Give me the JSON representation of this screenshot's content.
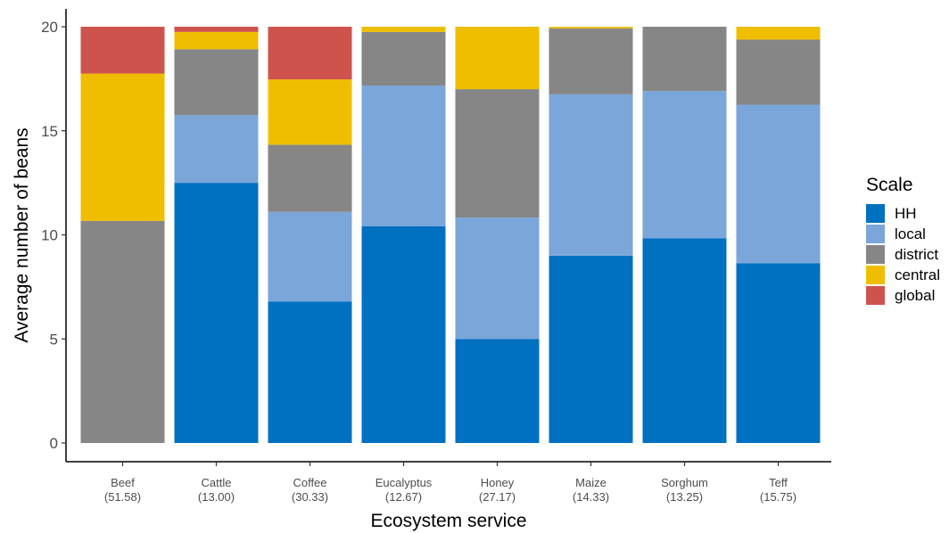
{
  "chart_data": {
    "type": "bar",
    "stacked": true,
    "xlabel": "Ecosystem service",
    "ylabel": "Average number of beans",
    "ylim": [
      0,
      20
    ],
    "yticks": [
      0,
      5,
      10,
      15,
      20
    ],
    "grid": false,
    "legend_position": "right",
    "categories": [
      "Beef",
      "Cattle",
      "Coffee",
      "Eucalyptus",
      "Honey",
      "Maize",
      "Sorghum",
      "Teff"
    ],
    "category_sublabels": [
      "(51.58)",
      "(13.00)",
      "(30.33)",
      "(12.67)",
      "(27.17)",
      "(14.33)",
      "(13.25)",
      "(15.75)"
    ],
    "legend": {
      "title": "Scale",
      "entries": [
        "HH",
        "local",
        "district",
        "central",
        "global"
      ]
    },
    "series": [
      {
        "name": "HH",
        "color": "#0070C0",
        "values": [
          0.0,
          12.5,
          6.8,
          10.42,
          5.0,
          9.0,
          9.83,
          8.63
        ]
      },
      {
        "name": "local",
        "color": "#7AA6DA",
        "values": [
          0.0,
          3.25,
          4.3,
          6.75,
          5.83,
          7.75,
          7.08,
          7.62
        ]
      },
      {
        "name": "district",
        "color": "#868686",
        "values": [
          10.67,
          3.17,
          3.23,
          2.58,
          6.17,
          3.17,
          3.09,
          3.13
        ]
      },
      {
        "name": "central",
        "color": "#F0BE00",
        "values": [
          7.08,
          0.83,
          3.14,
          0.25,
          3.0,
          0.08,
          0.0,
          0.62
        ]
      },
      {
        "name": "global",
        "color": "#CD534C",
        "values": [
          2.25,
          0.25,
          2.53,
          0.0,
          0.0,
          0.0,
          0.0,
          0.0
        ]
      }
    ]
  }
}
